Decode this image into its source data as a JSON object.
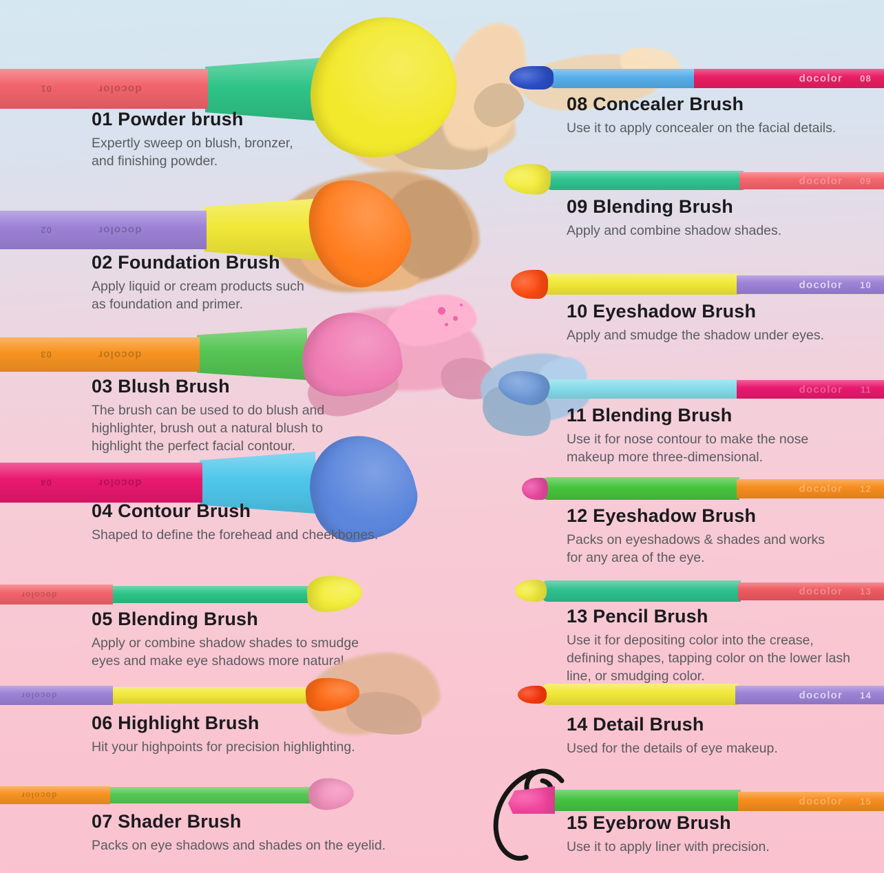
{
  "background": {
    "top": "#d5e8f2",
    "bottom": "#f9c2ce"
  },
  "brand_mark": "docolor",
  "splatter_color": "#ee4fa0",
  "brushes": [
    {
      "number": "01",
      "title": "01 Powder brush",
      "description": "Expertly sweep on blush, bronzer, and finishing powder.",
      "colors": {
        "handle": "#f2646c",
        "ferrule": "#2fc487",
        "bristles": "#f2e92c",
        "swatch": "#e9c9a4"
      }
    },
    {
      "number": "02",
      "title": "02 Foundation Brush",
      "description": "Apply liquid or cream products such as foundation and primer.",
      "colors": {
        "handle": "#9d82d6",
        "ferrule": "#f1e838",
        "bristles": "#ff7d1f",
        "swatch": "#d9a97b"
      }
    },
    {
      "number": "03",
      "title": "03 Blush Brush",
      "description": "The brush can be used to do blush and highlighter, brush out a natural blush to highlight the perfect facial contour.",
      "colors": {
        "handle": "#f79421",
        "ferrule": "#55c553",
        "bristles": "#f07eb4",
        "swatch": "#f2a6c2"
      }
    },
    {
      "number": "04",
      "title": "04 Contour Brush",
      "description": "Shaped to define the forehead and cheekbones.",
      "colors": {
        "handle": "#e9186e",
        "ferrule": "#4ec7ea",
        "bristles": "#5b86dc"
      }
    },
    {
      "number": "05",
      "title": "05 Blending Brush",
      "description": "Apply or combine shadow shades to smudge eyes and make eye shadows more natural.",
      "colors": {
        "handle": "#f2646c",
        "ferrule": "#2cc487",
        "bristles": "#f3ee3a"
      }
    },
    {
      "number": "06",
      "title": "06 Highlight Brush",
      "description": "Hit your highpoints for precision highlighting.",
      "colors": {
        "handle": "#9d82d6",
        "ferrule": "#f1e838",
        "bristles": "#fe6a15",
        "swatch": "#e3b79b"
      }
    },
    {
      "number": "07",
      "title": "07 Shader Brush",
      "description": "Packs on eye shadows and shades on the eyelid.",
      "colors": {
        "handle": "#f79421",
        "ferrule": "#55c854",
        "bristles": "#f492be"
      }
    },
    {
      "number": "08",
      "title": "08 Concealer Brush",
      "description": "Use it to apply concealer on the facial details.",
      "colors": {
        "handle": "#e91d63",
        "ferrule": "#56aee9",
        "bristles": "#2b4fc9",
        "swatch": "#eed6b5"
      }
    },
    {
      "number": "09",
      "title": "09 Blending Brush",
      "description": "Apply and combine shadow shades.",
      "colors": {
        "handle": "#f4666c",
        "ferrule": "#2fc491",
        "bristles": "#f4ee3f"
      }
    },
    {
      "number": "10",
      "title": "10 Eyeshadow Brush",
      "description": "Apply and smudge the shadow under eyes.",
      "colors": {
        "handle": "#9d82d6",
        "ferrule": "#f1e838",
        "bristles": "#fe4b12"
      }
    },
    {
      "number": "11",
      "title": "11 Blending Brush",
      "description": "Use it for nose contour to make the nose makeup more three-dimensional.",
      "colors": {
        "handle": "#e8196d",
        "ferrule": "#85dce9",
        "bristles": "#6f9ad8",
        "swatch": "#a9c4e0"
      }
    },
    {
      "number": "12",
      "title": "12 Eyeshadow Brush",
      "description": "Packs on eyeshadows & shades and works for any area of the eye.",
      "colors": {
        "handle": "#f78d1e",
        "ferrule": "#47c43d",
        "bristles": "#ee4ba3"
      }
    },
    {
      "number": "13",
      "title": "13 Pencil Brush",
      "description": "Use it for depositing color into the crease, defining shapes, tapping color on the lower lash line, or smudging color.",
      "colors": {
        "handle": "#ee5a60",
        "ferrule": "#2fc08f",
        "bristles": "#f4ee3f"
      }
    },
    {
      "number": "14",
      "title": "14 Detail Brush",
      "description": "Used for the details of eye makeup.",
      "colors": {
        "handle": "#9d82d6",
        "ferrule": "#f1e838",
        "bristles": "#fc3a0e"
      }
    },
    {
      "number": "15",
      "title": "15 Eyebrow Brush",
      "description": "Use it to apply liner with precision.",
      "colors": {
        "handle": "#f78d1e",
        "ferrule": "#44c440",
        "bristles": "#f4479f"
      }
    }
  ]
}
